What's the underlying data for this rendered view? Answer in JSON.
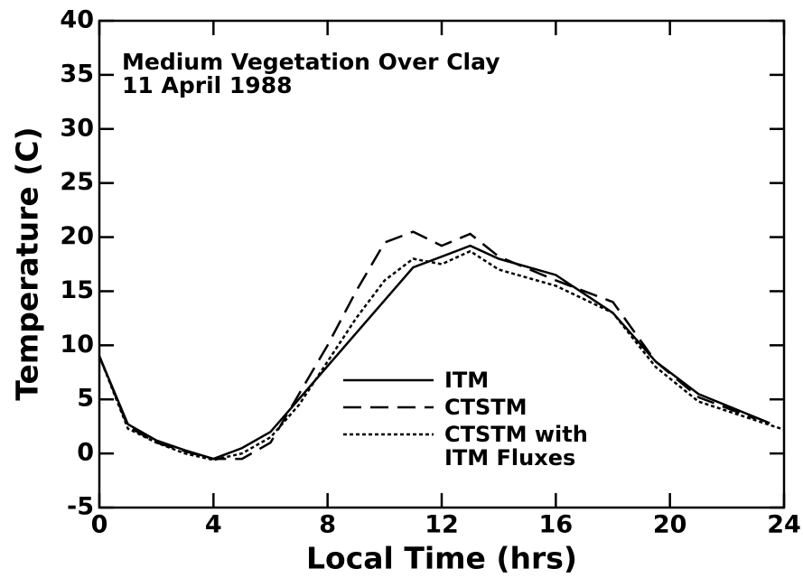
{
  "chart_data": {
    "type": "line",
    "annotations": [
      "Medium Vegetation Over Clay",
      "11 April 1988"
    ],
    "x_label": "Local Time (hrs)",
    "y_label": "Temperature (C)",
    "xlim": [
      0,
      24
    ],
    "xticks": [
      0,
      4,
      8,
      12,
      16,
      20,
      24
    ],
    "ylim": [
      -5,
      40
    ],
    "yticks": [
      -5,
      0,
      5,
      10,
      15,
      20,
      25,
      30,
      35,
      40
    ],
    "series": [
      {
        "name": "ITM",
        "color": "#000000",
        "dash": "solid",
        "x": [
          0,
          1,
          2,
          3,
          4,
          5,
          6,
          11,
          13,
          14,
          16,
          18,
          19.5,
          21,
          23.5
        ],
        "values": [
          9,
          2.7,
          1.2,
          0.3,
          -0.5,
          0.5,
          2,
          17.2,
          19.2,
          18,
          16.5,
          13,
          8.5,
          5.5,
          2.8
        ]
      },
      {
        "name": "CTSTM",
        "color": "#000000",
        "dash": "dashed",
        "x": [
          0,
          1,
          2,
          3,
          4,
          5,
          6,
          7,
          8,
          9,
          10,
          11,
          12,
          13,
          14,
          16,
          18,
          19.5,
          21,
          23
        ],
        "values": [
          9,
          2.5,
          1,
          0.2,
          -0.5,
          -0.5,
          1,
          5.5,
          10,
          15,
          19.5,
          20.5,
          19.2,
          20.3,
          18.2,
          16,
          14,
          8.5,
          5.2,
          3.2
        ]
      },
      {
        "name": "CTSTM with ITM Fluxes",
        "color": "#000000",
        "dash": "dotted",
        "x": [
          0,
          1,
          2,
          3,
          4,
          5,
          6,
          7,
          8,
          9,
          10,
          11,
          12,
          13,
          14,
          16,
          18,
          19.5,
          21,
          24
        ],
        "values": [
          9,
          2.3,
          1,
          0,
          -0.6,
          0,
          1.5,
          4.5,
          8.5,
          12.5,
          16,
          18,
          17.5,
          18.7,
          17,
          15.5,
          13,
          8,
          4.8,
          2.2
        ]
      }
    ]
  }
}
